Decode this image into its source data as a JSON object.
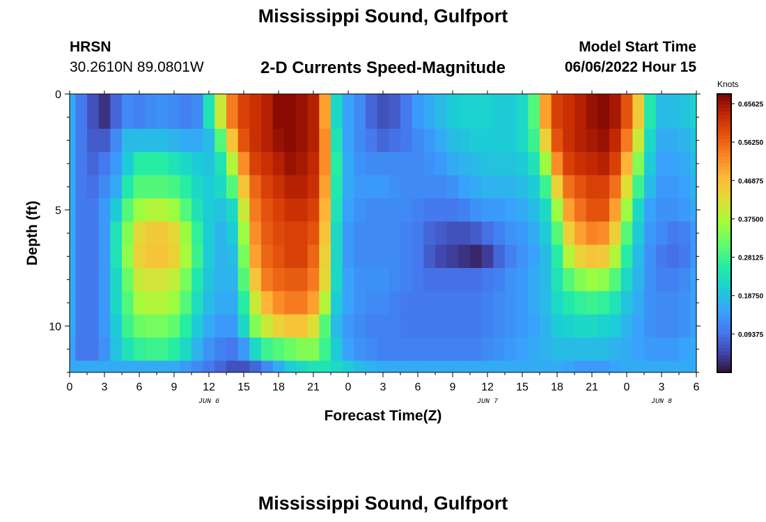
{
  "header": {
    "title": "Mississippi Sound, Gulfport",
    "station_name": "HRSN",
    "station_coords": "30.2610N  89.0801W",
    "subtitle": "2-D Currents Speed-Magnitude",
    "start_label": "Model Start Time",
    "start_value": "06/06/2022 Hour 15"
  },
  "footer": {
    "title": "Mississippi Sound, Gulfport"
  },
  "chart_data": {
    "type": "heatmap",
    "title": "2-D Currents Speed-Magnitude",
    "xlabel": "Forecast Time(Z)",
    "ylabel": "Depth (ft)",
    "x_ticks": [
      "0",
      "3",
      "6",
      "9",
      "12",
      "15",
      "18",
      "21",
      "0",
      "3",
      "6",
      "9",
      "12",
      "15",
      "18",
      "21",
      "0",
      "3",
      "6"
    ],
    "x_range_hours": [
      0,
      54
    ],
    "date_labels": [
      {
        "label": "JUN 6",
        "hour": 12
      },
      {
        "label": "JUN 7",
        "hour": 36
      },
      {
        "label": "JUN 8",
        "hour": 51
      }
    ],
    "y_ticks": [
      0,
      5,
      10
    ],
    "y_range_ft": [
      0,
      12
    ],
    "y_inverted": true,
    "colorbar": {
      "label": "Knots",
      "min": 0.0,
      "max": 0.68,
      "tick_labels": [
        "0.65625",
        "0.56250",
        "0.46875",
        "0.37500",
        "0.28125",
        "0.18750",
        "0.09375"
      ],
      "colormap": "turbo"
    },
    "speed_field_knots": {
      "x_hours": [
        0,
        1,
        2,
        3,
        4,
        5,
        6,
        7,
        8,
        9,
        10,
        11,
        12,
        13,
        14,
        15,
        16,
        17,
        18,
        19,
        20,
        21,
        22,
        23,
        24,
        25,
        26,
        27,
        28,
        29,
        30,
        31,
        32,
        33,
        34,
        35,
        36,
        37,
        38,
        39,
        40,
        41,
        42,
        43,
        44,
        45,
        46,
        47,
        48,
        49,
        50,
        51,
        52,
        53,
        54
      ],
      "depth_ft": [
        0,
        1,
        2,
        3,
        4,
        5,
        6,
        7,
        8,
        9,
        10,
        11,
        12
      ],
      "values": [
        [
          0.16,
          0.1,
          0.06,
          0.03,
          0.08,
          0.12,
          0.11,
          0.12,
          0.13,
          0.12,
          0.11,
          0.12,
          0.24,
          0.4,
          0.54,
          0.6,
          0.62,
          0.64,
          0.67,
          0.67,
          0.66,
          0.64,
          0.5,
          0.22,
          0.15,
          0.12,
          0.08,
          0.06,
          0.07,
          0.1,
          0.14,
          0.16,
          0.18,
          0.2,
          0.21,
          0.21,
          0.21,
          0.2,
          0.2,
          0.22,
          0.3,
          0.5,
          0.6,
          0.62,
          0.64,
          0.66,
          0.67,
          0.65,
          0.58,
          0.45,
          0.25,
          0.18,
          0.18,
          0.19,
          0.21
        ],
        [
          0.16,
          0.1,
          0.06,
          0.03,
          0.08,
          0.12,
          0.11,
          0.12,
          0.13,
          0.12,
          0.11,
          0.12,
          0.24,
          0.4,
          0.54,
          0.6,
          0.62,
          0.64,
          0.67,
          0.67,
          0.66,
          0.64,
          0.5,
          0.22,
          0.15,
          0.12,
          0.08,
          0.06,
          0.07,
          0.1,
          0.14,
          0.16,
          0.18,
          0.2,
          0.21,
          0.21,
          0.21,
          0.2,
          0.2,
          0.22,
          0.3,
          0.5,
          0.6,
          0.62,
          0.64,
          0.66,
          0.67,
          0.65,
          0.58,
          0.45,
          0.25,
          0.18,
          0.18,
          0.19,
          0.21
        ],
        [
          0.16,
          0.1,
          0.07,
          0.07,
          0.12,
          0.18,
          0.18,
          0.18,
          0.18,
          0.17,
          0.16,
          0.16,
          0.18,
          0.3,
          0.46,
          0.58,
          0.62,
          0.64,
          0.66,
          0.67,
          0.66,
          0.64,
          0.52,
          0.24,
          0.15,
          0.12,
          0.1,
          0.08,
          0.09,
          0.1,
          0.12,
          0.14,
          0.16,
          0.18,
          0.19,
          0.2,
          0.2,
          0.2,
          0.2,
          0.22,
          0.28,
          0.44,
          0.58,
          0.62,
          0.64,
          0.65,
          0.66,
          0.63,
          0.54,
          0.4,
          0.22,
          0.16,
          0.16,
          0.17,
          0.19
        ],
        [
          0.16,
          0.1,
          0.08,
          0.1,
          0.14,
          0.2,
          0.26,
          0.26,
          0.26,
          0.24,
          0.22,
          0.2,
          0.19,
          0.24,
          0.38,
          0.52,
          0.6,
          0.62,
          0.64,
          0.66,
          0.65,
          0.63,
          0.52,
          0.26,
          0.16,
          0.13,
          0.12,
          0.12,
          0.12,
          0.12,
          0.12,
          0.13,
          0.14,
          0.16,
          0.17,
          0.18,
          0.19,
          0.19,
          0.19,
          0.2,
          0.24,
          0.36,
          0.52,
          0.6,
          0.62,
          0.63,
          0.64,
          0.6,
          0.48,
          0.34,
          0.2,
          0.15,
          0.15,
          0.16,
          0.18
        ],
        [
          0.16,
          0.1,
          0.09,
          0.12,
          0.16,
          0.25,
          0.3,
          0.3,
          0.3,
          0.29,
          0.26,
          0.22,
          0.2,
          0.22,
          0.3,
          0.46,
          0.56,
          0.6,
          0.62,
          0.64,
          0.64,
          0.62,
          0.5,
          0.25,
          0.16,
          0.14,
          0.14,
          0.14,
          0.13,
          0.12,
          0.12,
          0.12,
          0.12,
          0.13,
          0.15,
          0.16,
          0.17,
          0.17,
          0.17,
          0.18,
          0.2,
          0.28,
          0.44,
          0.55,
          0.58,
          0.6,
          0.6,
          0.55,
          0.42,
          0.28,
          0.18,
          0.14,
          0.14,
          0.15,
          0.17
        ],
        [
          0.16,
          0.1,
          0.1,
          0.14,
          0.2,
          0.3,
          0.36,
          0.38,
          0.38,
          0.36,
          0.3,
          0.24,
          0.2,
          0.19,
          0.22,
          0.4,
          0.54,
          0.58,
          0.6,
          0.62,
          0.62,
          0.6,
          0.48,
          0.24,
          0.15,
          0.13,
          0.12,
          0.12,
          0.12,
          0.12,
          0.11,
          0.1,
          0.1,
          0.1,
          0.11,
          0.13,
          0.14,
          0.14,
          0.15,
          0.16,
          0.18,
          0.22,
          0.36,
          0.5,
          0.55,
          0.58,
          0.58,
          0.5,
          0.36,
          0.22,
          0.15,
          0.13,
          0.13,
          0.14,
          0.16
        ],
        [
          0.16,
          0.1,
          0.1,
          0.14,
          0.24,
          0.34,
          0.43,
          0.45,
          0.45,
          0.43,
          0.36,
          0.27,
          0.2,
          0.17,
          0.2,
          0.36,
          0.52,
          0.57,
          0.59,
          0.6,
          0.6,
          0.58,
          0.46,
          0.22,
          0.14,
          0.12,
          0.12,
          0.12,
          0.12,
          0.11,
          0.1,
          0.08,
          0.07,
          0.06,
          0.06,
          0.07,
          0.09,
          0.11,
          0.13,
          0.14,
          0.16,
          0.2,
          0.3,
          0.44,
          0.5,
          0.53,
          0.52,
          0.44,
          0.3,
          0.2,
          0.14,
          0.12,
          0.1,
          0.11,
          0.14
        ],
        [
          0.16,
          0.1,
          0.1,
          0.14,
          0.24,
          0.35,
          0.44,
          0.46,
          0.46,
          0.44,
          0.37,
          0.28,
          0.2,
          0.17,
          0.18,
          0.33,
          0.5,
          0.56,
          0.58,
          0.6,
          0.6,
          0.56,
          0.44,
          0.22,
          0.14,
          0.12,
          0.12,
          0.12,
          0.12,
          0.11,
          0.1,
          0.07,
          0.05,
          0.04,
          0.03,
          0.02,
          0.04,
          0.08,
          0.11,
          0.13,
          0.15,
          0.18,
          0.26,
          0.38,
          0.44,
          0.46,
          0.45,
          0.38,
          0.26,
          0.18,
          0.13,
          0.1,
          0.09,
          0.1,
          0.14
        ],
        [
          0.16,
          0.1,
          0.1,
          0.14,
          0.22,
          0.32,
          0.4,
          0.41,
          0.41,
          0.39,
          0.33,
          0.25,
          0.19,
          0.17,
          0.17,
          0.3,
          0.46,
          0.54,
          0.56,
          0.57,
          0.57,
          0.54,
          0.43,
          0.22,
          0.15,
          0.13,
          0.13,
          0.13,
          0.12,
          0.11,
          0.1,
          0.09,
          0.09,
          0.09,
          0.09,
          0.09,
          0.1,
          0.11,
          0.13,
          0.14,
          0.16,
          0.18,
          0.24,
          0.3,
          0.34,
          0.36,
          0.35,
          0.3,
          0.22,
          0.17,
          0.13,
          0.11,
          0.11,
          0.12,
          0.15
        ],
        [
          0.16,
          0.1,
          0.1,
          0.14,
          0.22,
          0.3,
          0.37,
          0.38,
          0.38,
          0.36,
          0.3,
          0.23,
          0.18,
          0.16,
          0.16,
          0.26,
          0.4,
          0.48,
          0.52,
          0.54,
          0.54,
          0.5,
          0.38,
          0.2,
          0.15,
          0.13,
          0.12,
          0.12,
          0.11,
          0.1,
          0.1,
          0.1,
          0.1,
          0.1,
          0.1,
          0.1,
          0.11,
          0.12,
          0.13,
          0.14,
          0.16,
          0.18,
          0.22,
          0.25,
          0.27,
          0.28,
          0.27,
          0.24,
          0.19,
          0.16,
          0.13,
          0.12,
          0.12,
          0.13,
          0.15
        ],
        [
          0.16,
          0.1,
          0.1,
          0.14,
          0.2,
          0.28,
          0.32,
          0.33,
          0.33,
          0.31,
          0.26,
          0.2,
          0.16,
          0.14,
          0.14,
          0.22,
          0.34,
          0.4,
          0.44,
          0.46,
          0.46,
          0.42,
          0.3,
          0.18,
          0.14,
          0.12,
          0.11,
          0.11,
          0.11,
          0.1,
          0.1,
          0.1,
          0.1,
          0.1,
          0.1,
          0.1,
          0.11,
          0.12,
          0.13,
          0.14,
          0.15,
          0.17,
          0.2,
          0.21,
          0.22,
          0.22,
          0.21,
          0.2,
          0.17,
          0.15,
          0.13,
          0.12,
          0.12,
          0.13,
          0.15
        ],
        [
          0.15,
          0.1,
          0.1,
          0.13,
          0.19,
          0.24,
          0.27,
          0.28,
          0.28,
          0.26,
          0.22,
          0.17,
          0.13,
          0.11,
          0.1,
          0.14,
          0.22,
          0.28,
          0.3,
          0.32,
          0.34,
          0.34,
          0.28,
          0.2,
          0.15,
          0.13,
          0.12,
          0.11,
          0.11,
          0.11,
          0.11,
          0.11,
          0.11,
          0.11,
          0.11,
          0.11,
          0.12,
          0.13,
          0.14,
          0.15,
          0.16,
          0.17,
          0.18,
          0.18,
          0.18,
          0.18,
          0.18,
          0.17,
          0.16,
          0.15,
          0.14,
          0.14,
          0.14,
          0.15,
          0.16
        ],
        [
          0.16,
          0.16,
          0.16,
          0.16,
          0.16,
          0.16,
          0.16,
          0.16,
          0.16,
          0.16,
          0.14,
          0.12,
          0.1,
          0.08,
          0.06,
          0.06,
          0.08,
          0.12,
          0.16,
          0.2,
          0.22,
          0.24,
          0.24,
          0.22,
          0.2,
          0.18,
          0.17,
          0.16,
          0.16,
          0.16,
          0.16,
          0.16,
          0.16,
          0.16,
          0.16,
          0.16,
          0.16,
          0.16,
          0.16,
          0.16,
          0.16,
          0.16,
          0.16,
          0.15,
          0.14,
          0.14,
          0.14,
          0.15,
          0.16,
          0.16,
          0.16,
          0.16,
          0.16,
          0.16,
          0.16
        ]
      ]
    }
  }
}
